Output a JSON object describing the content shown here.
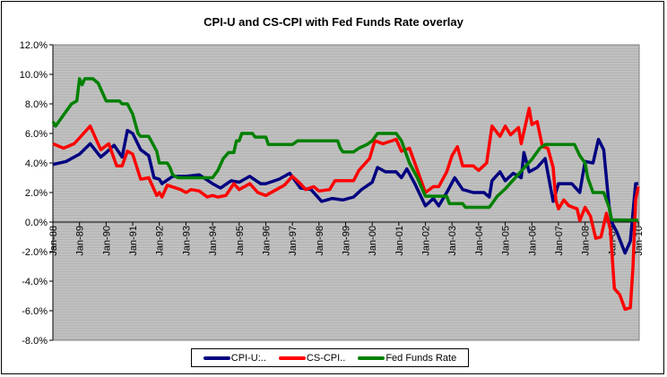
{
  "chart_data": {
    "type": "line",
    "title": "CPI-U and CS-CPI with Fed Funds Rate overlay",
    "xlabel": "",
    "ylabel": "",
    "xlim": [
      1988,
      2010
    ],
    "ylim": [
      -8,
      12
    ],
    "y_ticks": [
      "-8.0%",
      "-6.0%",
      "-4.0%",
      "-2.0%",
      "0.0%",
      "2.0%",
      "4.0%",
      "6.0%",
      "8.0%",
      "10.0%",
      "12.0%"
    ],
    "y_tick_values": [
      -8,
      -6,
      -4,
      -2,
      0,
      2,
      4,
      6,
      8,
      10,
      12
    ],
    "x_ticks": [
      "Jan-88",
      "Jan-89",
      "Jan-90",
      "Jan-91",
      "Jan-92",
      "Jan-93",
      "Jan-94",
      "Jan-95",
      "Jan-96",
      "Jan-97",
      "Jan-98",
      "Jan-99",
      "Jan-00",
      "Jan-01",
      "Jan-02",
      "Jan-03",
      "Jan-04",
      "Jan-05",
      "Jan-06",
      "Jan-07",
      "Jan-08",
      "Jan-09",
      "Jan-10"
    ],
    "legend_position": "bottom",
    "grid": false,
    "series": [
      {
        "name": "CPI-U:..",
        "color": "#000080",
        "points": [
          [
            1988.0,
            3.9
          ],
          [
            1988.5,
            4.1
          ],
          [
            1989.0,
            4.6
          ],
          [
            1989.4,
            5.3
          ],
          [
            1989.8,
            4.4
          ],
          [
            1990.0,
            4.7
          ],
          [
            1990.3,
            5.2
          ],
          [
            1990.6,
            4.4
          ],
          [
            1990.8,
            6.2
          ],
          [
            1991.0,
            6.0
          ],
          [
            1991.3,
            4.9
          ],
          [
            1991.6,
            4.5
          ],
          [
            1991.8,
            3.0
          ],
          [
            1992.0,
            2.9
          ],
          [
            1992.1,
            2.6
          ],
          [
            1992.5,
            3.1
          ],
          [
            1993.0,
            3.1
          ],
          [
            1993.5,
            3.2
          ],
          [
            1994.0,
            2.6
          ],
          [
            1994.3,
            2.3
          ],
          [
            1994.7,
            2.8
          ],
          [
            1995.0,
            2.7
          ],
          [
            1995.4,
            3.1
          ],
          [
            1995.8,
            2.6
          ],
          [
            1996.0,
            2.6
          ],
          [
            1996.5,
            2.9
          ],
          [
            1996.9,
            3.3
          ],
          [
            1997.3,
            2.3
          ],
          [
            1997.7,
            2.2
          ],
          [
            1998.1,
            1.4
          ],
          [
            1998.5,
            1.6
          ],
          [
            1998.9,
            1.5
          ],
          [
            1999.3,
            1.7
          ],
          [
            1999.6,
            2.2
          ],
          [
            2000.0,
            2.7
          ],
          [
            2000.2,
            3.7
          ],
          [
            2000.5,
            3.4
          ],
          [
            2000.9,
            3.4
          ],
          [
            2001.1,
            3.0
          ],
          [
            2001.3,
            3.6
          ],
          [
            2001.6,
            2.6
          ],
          [
            2002.0,
            1.1
          ],
          [
            2002.3,
            1.6
          ],
          [
            2002.5,
            1.1
          ],
          [
            2002.8,
            2.0
          ],
          [
            2003.1,
            3.0
          ],
          [
            2003.4,
            2.2
          ],
          [
            2003.8,
            2.0
          ],
          [
            2004.2,
            2.0
          ],
          [
            2004.4,
            1.7
          ],
          [
            2004.5,
            2.8
          ],
          [
            2004.8,
            3.4
          ],
          [
            2005.0,
            2.8
          ],
          [
            2005.3,
            3.3
          ],
          [
            2005.6,
            3.0
          ],
          [
            2005.7,
            4.7
          ],
          [
            2005.9,
            3.4
          ],
          [
            2006.2,
            3.7
          ],
          [
            2006.5,
            4.3
          ],
          [
            2006.8,
            1.4
          ],
          [
            2007.0,
            2.6
          ],
          [
            2007.5,
            2.6
          ],
          [
            2007.8,
            2.0
          ],
          [
            2008.0,
            4.1
          ],
          [
            2008.3,
            4.0
          ],
          [
            2008.5,
            5.6
          ],
          [
            2008.7,
            4.9
          ],
          [
            2008.9,
            1.1
          ],
          [
            2009.0,
            0.0
          ],
          [
            2009.2,
            -0.7
          ],
          [
            2009.5,
            -2.1
          ],
          [
            2009.7,
            -1.3
          ],
          [
            2009.9,
            2.6
          ],
          [
            2010.0,
            2.6
          ]
        ]
      },
      {
        "name": "CS-CPI..",
        "color": "#ff0000",
        "points": [
          [
            1988.0,
            5.3
          ],
          [
            1988.4,
            5.0
          ],
          [
            1988.8,
            5.3
          ],
          [
            1989.0,
            5.7
          ],
          [
            1989.4,
            6.5
          ],
          [
            1989.8,
            4.9
          ],
          [
            1990.1,
            5.3
          ],
          [
            1990.4,
            3.8
          ],
          [
            1990.6,
            3.8
          ],
          [
            1990.8,
            4.8
          ],
          [
            1991.0,
            4.6
          ],
          [
            1991.3,
            2.9
          ],
          [
            1991.6,
            3.0
          ],
          [
            1991.9,
            1.8
          ],
          [
            1992.0,
            2.0
          ],
          [
            1992.1,
            1.7
          ],
          [
            1992.3,
            2.5
          ],
          [
            1992.8,
            2.2
          ],
          [
            1993.0,
            2.0
          ],
          [
            1993.2,
            2.2
          ],
          [
            1993.5,
            2.1
          ],
          [
            1993.8,
            1.7
          ],
          [
            1994.0,
            1.8
          ],
          [
            1994.2,
            1.7
          ],
          [
            1994.5,
            1.8
          ],
          [
            1994.8,
            2.6
          ],
          [
            1995.0,
            2.2
          ],
          [
            1995.4,
            2.6
          ],
          [
            1995.7,
            2.0
          ],
          [
            1996.0,
            1.8
          ],
          [
            1996.3,
            2.1
          ],
          [
            1996.7,
            2.5
          ],
          [
            1997.0,
            3.1
          ],
          [
            1997.3,
            2.6
          ],
          [
            1997.5,
            2.2
          ],
          [
            1997.8,
            2.4
          ],
          [
            1998.0,
            2.1
          ],
          [
            1998.4,
            2.2
          ],
          [
            1998.6,
            2.8
          ],
          [
            1999.3,
            2.8
          ],
          [
            1999.5,
            3.5
          ],
          [
            1999.9,
            4.3
          ],
          [
            2000.1,
            5.5
          ],
          [
            2000.4,
            5.3
          ],
          [
            2000.9,
            5.6
          ],
          [
            2001.1,
            4.8
          ],
          [
            2001.4,
            5.0
          ],
          [
            2001.6,
            4.0
          ],
          [
            2002.0,
            2.0
          ],
          [
            2002.3,
            2.4
          ],
          [
            2002.5,
            2.4
          ],
          [
            2002.8,
            3.4
          ],
          [
            2003.0,
            4.5
          ],
          [
            2003.2,
            5.1
          ],
          [
            2003.4,
            3.8
          ],
          [
            2003.8,
            3.8
          ],
          [
            2004.0,
            3.5
          ],
          [
            2004.3,
            4.0
          ],
          [
            2004.5,
            6.5
          ],
          [
            2004.8,
            5.8
          ],
          [
            2005.0,
            6.5
          ],
          [
            2005.2,
            5.9
          ],
          [
            2005.5,
            6.4
          ],
          [
            2005.6,
            5.3
          ],
          [
            2005.9,
            7.7
          ],
          [
            2006.0,
            6.6
          ],
          [
            2006.2,
            6.8
          ],
          [
            2006.4,
            5.1
          ],
          [
            2006.6,
            5.0
          ],
          [
            2006.8,
            3.7
          ],
          [
            2006.9,
            1.5
          ],
          [
            2007.0,
            0.9
          ],
          [
            2007.2,
            1.5
          ],
          [
            2007.4,
            1.1
          ],
          [
            2007.7,
            0.9
          ],
          [
            2007.8,
            0.1
          ],
          [
            2008.0,
            1.0
          ],
          [
            2008.2,
            0.4
          ],
          [
            2008.4,
            -1.1
          ],
          [
            2008.6,
            -1.0
          ],
          [
            2008.8,
            0.6
          ],
          [
            2008.95,
            -0.5
          ],
          [
            2009.1,
            -4.5
          ],
          [
            2009.3,
            -4.9
          ],
          [
            2009.5,
            -5.9
          ],
          [
            2009.7,
            -5.8
          ],
          [
            2009.8,
            -3.0
          ],
          [
            2009.9,
            1.5
          ],
          [
            2010.0,
            2.4
          ]
        ]
      },
      {
        "name": "Fed Funds Rate",
        "color": "#008000",
        "points": [
          [
            1988.0,
            6.8
          ],
          [
            1988.1,
            6.5
          ],
          [
            1988.5,
            7.5
          ],
          [
            1988.7,
            8.0
          ],
          [
            1988.9,
            8.2
          ],
          [
            1989.0,
            9.7
          ],
          [
            1989.1,
            9.3
          ],
          [
            1989.2,
            9.7
          ],
          [
            1989.5,
            9.7
          ],
          [
            1989.7,
            9.4
          ],
          [
            1990.0,
            8.2
          ],
          [
            1990.5,
            8.2
          ],
          [
            1990.6,
            8.0
          ],
          [
            1990.8,
            8.0
          ],
          [
            1991.0,
            7.3
          ],
          [
            1991.2,
            6.0
          ],
          [
            1991.3,
            5.8
          ],
          [
            1991.6,
            5.8
          ],
          [
            1991.9,
            4.8
          ],
          [
            1992.0,
            4.0
          ],
          [
            1992.3,
            4.0
          ],
          [
            1992.4,
            3.7
          ],
          [
            1992.5,
            3.2
          ],
          [
            1992.7,
            3.0
          ],
          [
            1994.0,
            3.0
          ],
          [
            1994.2,
            3.5
          ],
          [
            1994.4,
            4.3
          ],
          [
            1994.6,
            4.7
          ],
          [
            1994.8,
            4.7
          ],
          [
            1994.9,
            5.5
          ],
          [
            1995.0,
            5.5
          ],
          [
            1995.1,
            6.0
          ],
          [
            1995.5,
            6.0
          ],
          [
            1995.6,
            5.75
          ],
          [
            1996.0,
            5.75
          ],
          [
            1996.1,
            5.25
          ],
          [
            1997.0,
            5.25
          ],
          [
            1997.2,
            5.5
          ],
          [
            1998.7,
            5.5
          ],
          [
            1998.8,
            5.0
          ],
          [
            1998.9,
            4.75
          ],
          [
            1999.3,
            4.75
          ],
          [
            1999.5,
            5.0
          ],
          [
            1999.8,
            5.25
          ],
          [
            2000.0,
            5.5
          ],
          [
            2000.2,
            6.0
          ],
          [
            2000.9,
            6.0
          ],
          [
            2001.1,
            5.5
          ],
          [
            2001.2,
            5.0
          ],
          [
            2001.4,
            4.0
          ],
          [
            2001.7,
            3.0
          ],
          [
            2002.0,
            1.75
          ],
          [
            2002.8,
            1.75
          ],
          [
            2002.9,
            1.25
          ],
          [
            2003.4,
            1.25
          ],
          [
            2003.5,
            1.0
          ],
          [
            2004.4,
            1.0
          ],
          [
            2004.5,
            1.25
          ],
          [
            2004.7,
            1.75
          ],
          [
            2005.0,
            2.25
          ],
          [
            2005.5,
            3.25
          ],
          [
            2006.0,
            4.25
          ],
          [
            2006.3,
            5.0
          ],
          [
            2006.5,
            5.25
          ],
          [
            2007.6,
            5.25
          ],
          [
            2007.8,
            4.5
          ],
          [
            2008.0,
            4.0
          ],
          [
            2008.1,
            3.0
          ],
          [
            2008.3,
            2.0
          ],
          [
            2008.7,
            2.0
          ],
          [
            2008.9,
            1.0
          ],
          [
            2009.0,
            0.15
          ],
          [
            2010.0,
            0.12
          ]
        ]
      }
    ]
  }
}
